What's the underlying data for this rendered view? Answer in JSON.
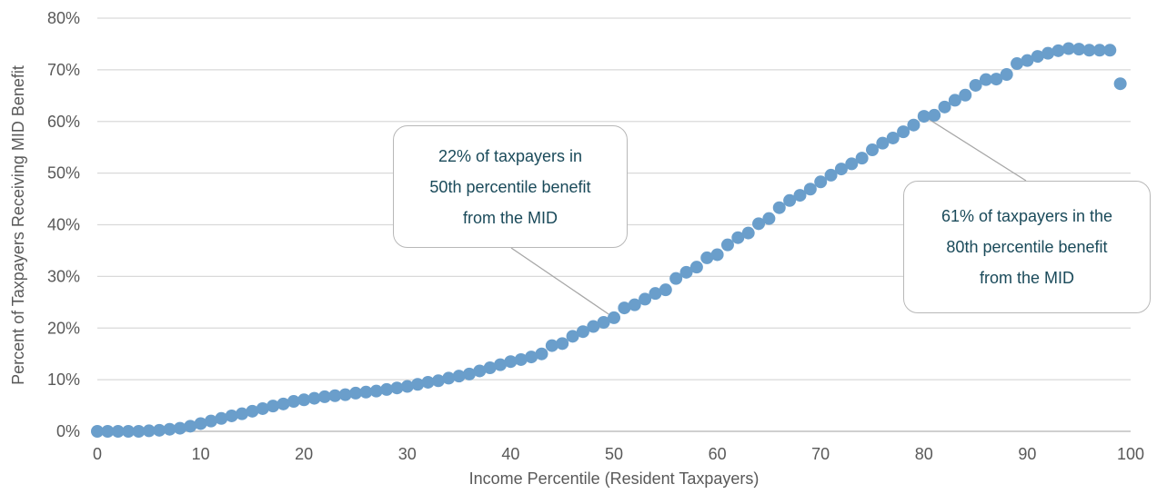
{
  "chart_data": {
    "type": "scatter",
    "title": "",
    "xlabel": "Income Percentile (Resident Taxpayers)",
    "ylabel": "Percent of Taxpayers Receiving MID Benefit",
    "xlim": [
      0,
      100
    ],
    "ylim": [
      0,
      80
    ],
    "x_ticks": [
      0,
      10,
      20,
      30,
      40,
      50,
      60,
      70,
      80,
      90,
      100
    ],
    "y_ticks": [
      0,
      10,
      20,
      30,
      40,
      50,
      60,
      70,
      80
    ],
    "y_tick_labels": [
      "0%",
      "10%",
      "20%",
      "30%",
      "40%",
      "50%",
      "60%",
      "70%",
      "80%"
    ],
    "x_tick_labels": [
      "0",
      "10",
      "20",
      "30",
      "40",
      "50",
      "60",
      "70",
      "80",
      "90",
      "100"
    ],
    "grid": "horizontal",
    "series": [
      {
        "color": "#6a9ecb",
        "x": [
          0,
          1,
          2,
          3,
          4,
          5,
          6,
          7,
          8,
          9,
          10,
          11,
          12,
          13,
          14,
          15,
          16,
          17,
          18,
          19,
          20,
          21,
          22,
          23,
          24,
          25,
          26,
          27,
          28,
          29,
          30,
          31,
          32,
          33,
          34,
          35,
          36,
          37,
          38,
          39,
          40,
          41,
          42,
          43,
          44,
          45,
          46,
          47,
          48,
          49,
          50,
          51,
          52,
          53,
          54,
          55,
          56,
          57,
          58,
          59,
          60,
          61,
          62,
          63,
          64,
          65,
          66,
          67,
          68,
          69,
          70,
          71,
          72,
          73,
          74,
          75,
          76,
          77,
          78,
          79,
          80,
          81,
          82,
          83,
          84,
          85,
          86,
          87,
          88,
          89,
          90,
          91,
          92,
          93,
          94,
          95,
          96,
          97,
          98,
          99
        ],
        "y": [
          0.0,
          0.0,
          0.0,
          0.0,
          0.0,
          0.1,
          0.2,
          0.4,
          0.6,
          1.0,
          1.5,
          2.0,
          2.5,
          3.0,
          3.4,
          3.9,
          4.4,
          4.9,
          5.3,
          5.8,
          6.1,
          6.4,
          6.7,
          6.9,
          7.1,
          7.4,
          7.6,
          7.8,
          8.1,
          8.4,
          8.7,
          9.1,
          9.5,
          9.8,
          10.3,
          10.7,
          11.1,
          11.7,
          12.3,
          12.9,
          13.5,
          13.9,
          14.4,
          15.0,
          16.6,
          17.0,
          18.4,
          19.3,
          20.3,
          21.1,
          22.0,
          23.9,
          24.5,
          25.6,
          26.7,
          27.4,
          29.6,
          30.8,
          31.8,
          33.6,
          34.2,
          36.1,
          37.5,
          38.4,
          40.2,
          41.2,
          43.3,
          44.7,
          45.7,
          46.9,
          48.3,
          49.6,
          50.8,
          51.8,
          52.9,
          54.5,
          55.8,
          56.8,
          58.0,
          59.3,
          61.0,
          61.2,
          62.8,
          64.1,
          65.1,
          67.0,
          68.1,
          68.2,
          69.1,
          71.2,
          71.8,
          72.6,
          73.2,
          73.7,
          74.1,
          74.0,
          73.8,
          73.8,
          73.8,
          67.3
        ]
      }
    ],
    "annotations": [
      {
        "lines": [
          "22% of taxpayers in",
          "50th percentile benefit",
          "from the MID"
        ],
        "point": [
          50,
          22
        ],
        "text_color": "#1a4a5a"
      },
      {
        "lines": [
          "61% of taxpayers in the",
          "80th percentile benefit",
          "from the MID"
        ],
        "point": [
          80,
          61
        ],
        "text_color": "#1a4a5a"
      }
    ],
    "colors": {
      "marker": "#6a9ecb",
      "grid": "#d9d9d9",
      "axis": "#bfbfbf",
      "leader": "#a6a6a6",
      "tick_text": "#595959"
    }
  }
}
